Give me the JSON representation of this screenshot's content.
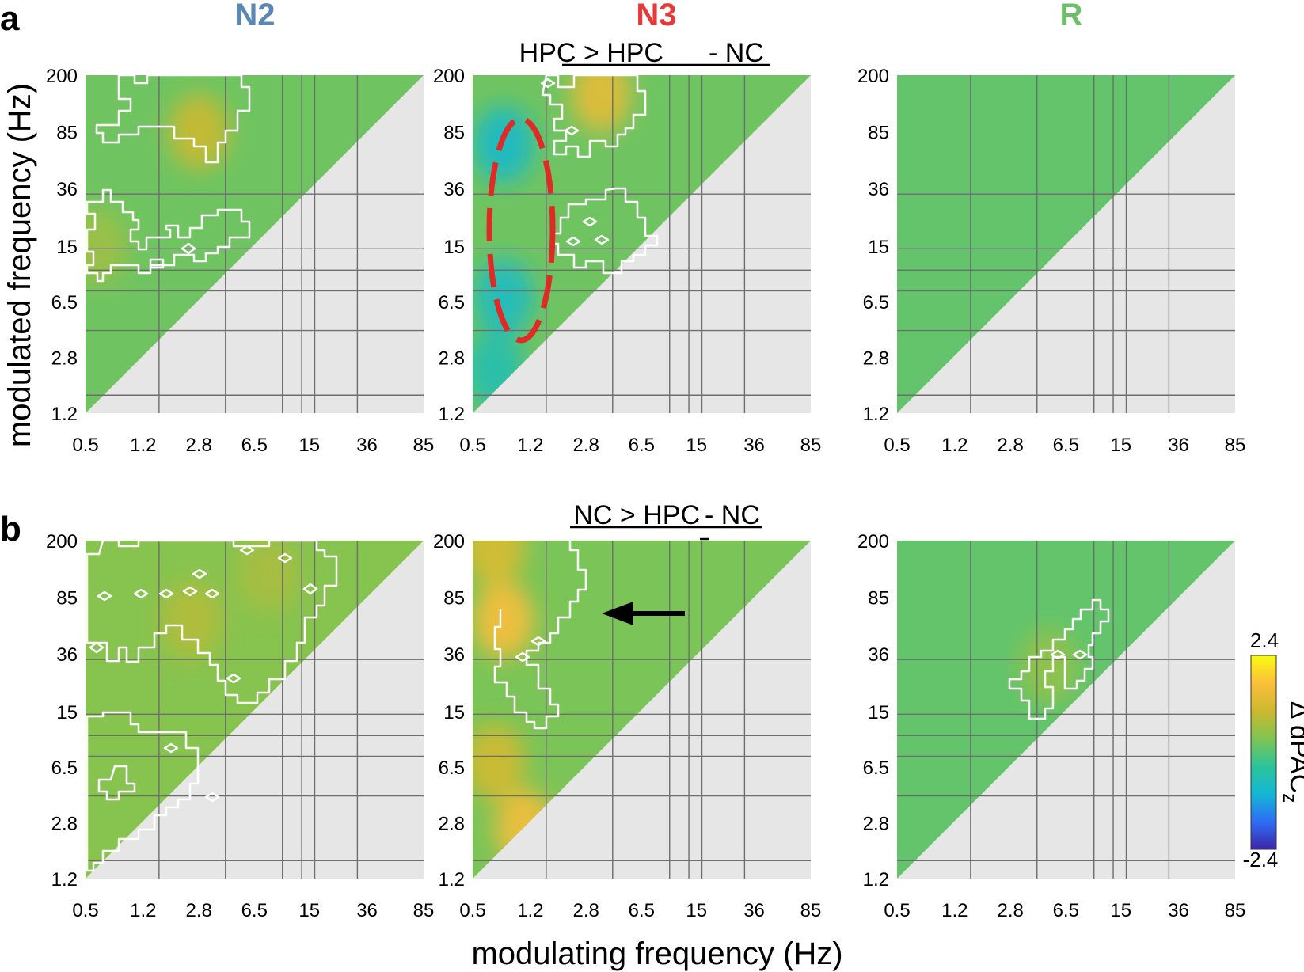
{
  "panel_letters": [
    "a",
    "b"
  ],
  "stage_labels": [
    {
      "text": "N2",
      "color": "#5b87b5"
    },
    {
      "text": "N3",
      "color": "#e8393a"
    },
    {
      "text": "R",
      "color": "#6cbf66"
    }
  ],
  "row_titles": {
    "a": {
      "part1": "HPC > HPC",
      "part2": "- NC"
    },
    "b": {
      "part1": "NC > HPC",
      "part2": "- NC"
    }
  },
  "xlabel": "modulating frequency (Hz)",
  "ylabel": "modulated frequency (Hz)",
  "colorbar": {
    "label": "Δ dPAC",
    "subscript": "z",
    "max_label": "2.4",
    "min_label": "-2.4",
    "range": [
      -2.4,
      2.4
    ],
    "colors": [
      "#3e26a8",
      "#2e6df5",
      "#14b7d4",
      "#2dc49a",
      "#80c452",
      "#ceb92f",
      "#fbbf3c",
      "#f9fb0e"
    ]
  },
  "colors": {
    "background_lower": "#e6e6e6",
    "base_heatmap": "#1fb4b4",
    "grid": "#6e6e6e",
    "contour": "#ffffff",
    "ellipse": "#e02a26",
    "arrow": "#000000"
  },
  "chart_data": {
    "type": "heatmap",
    "description_kind": "comodulogram grid 2 rows x 3 sleep stages",
    "x_ticks": [
      "0.5",
      "1.2",
      "2.8",
      "6.5",
      "15",
      "36",
      "85"
    ],
    "y_ticks": [
      "200",
      "85",
      "36",
      "15",
      "6.5",
      "2.8",
      "1.2"
    ],
    "clim": [
      -2.4,
      2.4
    ],
    "panels": [
      {
        "row": "a",
        "stage": "N2",
        "mean_value": 0.2,
        "hotspots": [
          {
            "xf": 2.8,
            "yf": 85,
            "v": 1.0
          },
          {
            "xf": 0.6,
            "yf": 15,
            "v": 0.6
          }
        ]
      },
      {
        "row": "a",
        "stage": "N3",
        "mean_value": 0.2,
        "hotspots": [
          {
            "xf": 3.5,
            "yf": 150,
            "v": 1.4
          },
          {
            "xf": 0.8,
            "yf": 70,
            "v": -0.9
          },
          {
            "xf": 0.8,
            "yf": 7,
            "v": -0.8
          },
          {
            "xf": 0.7,
            "yf": 2.3,
            "v": -0.6
          }
        ]
      },
      {
        "row": "a",
        "stage": "R",
        "mean_value": 0.1,
        "hotspots": []
      },
      {
        "row": "b",
        "stage": "N2",
        "mean_value": 0.4,
        "hotspots": [
          {
            "xf": 2.5,
            "yf": 60,
            "v": 0.8
          },
          {
            "xf": 8,
            "yf": 120,
            "v": 0.7
          }
        ]
      },
      {
        "row": "b",
        "stage": "N3",
        "mean_value": 0.3,
        "hotspots": [
          {
            "xf": 0.8,
            "yf": 60,
            "v": 1.7
          },
          {
            "xf": 0.7,
            "yf": 180,
            "v": 1.2
          },
          {
            "xf": 1.1,
            "yf": 2.6,
            "v": 1.6
          },
          {
            "xf": 0.7,
            "yf": 7,
            "v": 1.1
          }
        ]
      },
      {
        "row": "b",
        "stage": "R",
        "mean_value": 0.1,
        "hotspots": [
          {
            "xf": 5,
            "yf": 30,
            "v": 0.5
          }
        ]
      }
    ]
  }
}
